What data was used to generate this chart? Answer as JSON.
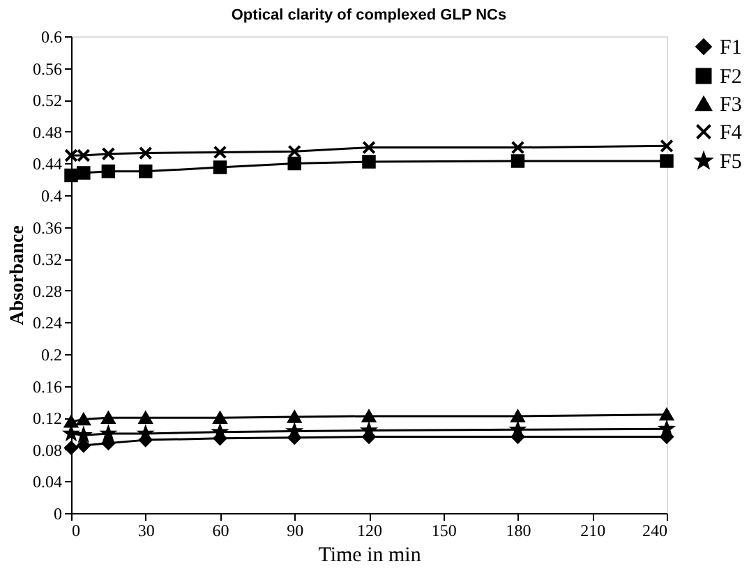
{
  "chart_data": {
    "type": "line",
    "title": "Optical clarity of complexed GLP NCs",
    "xlabel": "Time in min",
    "ylabel": "Absorbance",
    "x": [
      0,
      5,
      15,
      30,
      60,
      90,
      120,
      180,
      240
    ],
    "series": [
      {
        "name": "F1",
        "color": "#000000",
        "marker": "diamond",
        "values": [
          0.082,
          0.085,
          0.088,
          0.092,
          0.094,
          0.095,
          0.096,
          0.096,
          0.096
        ]
      },
      {
        "name": "F2",
        "color": "#000000",
        "marker": "square",
        "values": [
          0.425,
          0.428,
          0.43,
          0.43,
          0.435,
          0.44,
          0.442,
          0.443,
          0.443
        ]
      },
      {
        "name": "F3",
        "color": "#000000",
        "marker": "triangle",
        "values": [
          0.115,
          0.118,
          0.12,
          0.12,
          0.12,
          0.121,
          0.122,
          0.122,
          0.124
        ]
      },
      {
        "name": "F4",
        "color": "#000000",
        "marker": "cross",
        "values": [
          0.45,
          0.45,
          0.452,
          0.453,
          0.454,
          0.455,
          0.46,
          0.46,
          0.462
        ]
      },
      {
        "name": "F5",
        "color": "#000000",
        "marker": "star",
        "values": [
          0.1,
          0.098,
          0.1,
          0.1,
          0.102,
          0.103,
          0.104,
          0.105,
          0.106
        ]
      }
    ],
    "xlim": [
      0,
      240
    ],
    "xticks": [
      0,
      30,
      60,
      90,
      120,
      150,
      180,
      210,
      240
    ],
    "ylim": [
      0,
      0.6
    ],
    "yticks": [
      0,
      0.04,
      0.08,
      0.12,
      0.16,
      0.2,
      0.24,
      0.28,
      0.32,
      0.36,
      0.4,
      0.44,
      0.48,
      0.52,
      0.56,
      0.6
    ],
    "grid": false,
    "legend": "right",
    "line_style": "solid"
  }
}
